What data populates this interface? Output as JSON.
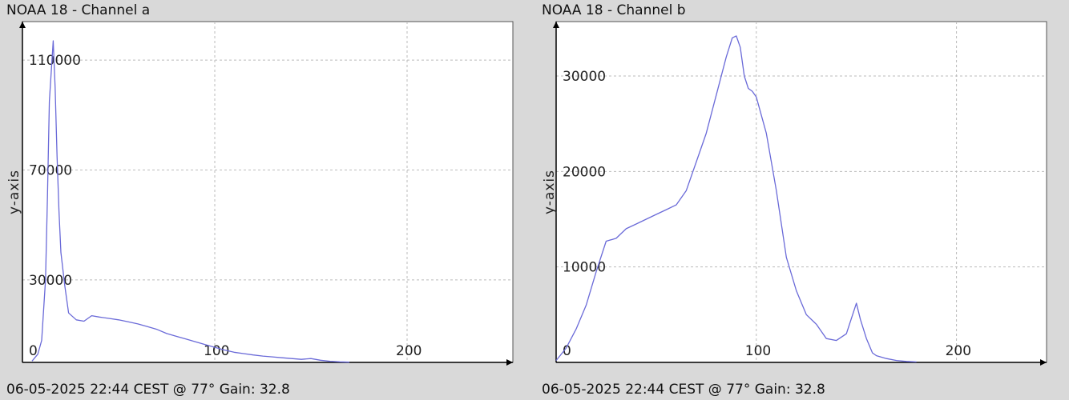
{
  "chart_data": [
    {
      "type": "line",
      "title": "NOAA 18 - Channel a",
      "footer": "06-05-2025 22:44 CEST @ 77° Gain: 32.8",
      "xlabel": "",
      "ylabel": "y-axis",
      "xlim": [
        0,
        255
      ],
      "ylim": [
        0,
        124000
      ],
      "xticks": [
        0,
        100,
        200
      ],
      "xtick_labels": [
        "0",
        "100",
        "200"
      ],
      "yticks": [
        30000,
        70000,
        110000
      ],
      "ytick_labels": [
        "30000",
        "70000",
        "110000"
      ],
      "grid": true,
      "line_color": "#6a6ad8",
      "series": [
        {
          "x": [
            5,
            8,
            10,
            12,
            13,
            14,
            15,
            16,
            17,
            18,
            19,
            20,
            22,
            24,
            28,
            32,
            36,
            40,
            45,
            50,
            55,
            60,
            65,
            70,
            75,
            80,
            85,
            90,
            95,
            100,
            105,
            110,
            115,
            120,
            125,
            130,
            135,
            140,
            145,
            150,
            155,
            160,
            165,
            170,
            170
          ],
          "y": [
            500,
            3000,
            8000,
            30000,
            60000,
            95000,
            106000,
            117000,
            100000,
            75000,
            55000,
            40000,
            28000,
            18000,
            15500,
            15000,
            17000,
            16500,
            16000,
            15500,
            14800,
            14000,
            13000,
            12000,
            10500,
            9500,
            8500,
            7500,
            6500,
            5500,
            4500,
            3700,
            3200,
            2700,
            2300,
            2000,
            1700,
            1400,
            1100,
            1400,
            800,
            400,
            200,
            100,
            100
          ]
        }
      ]
    },
    {
      "type": "line",
      "title": "NOAA 18 - Channel b",
      "footer": "06-05-2025 22:44 CEST @ 77° Gain: 32.8",
      "xlabel": "",
      "ylabel": "y-axis",
      "xlim": [
        0,
        245
      ],
      "ylim": [
        0,
        35700
      ],
      "xticks": [
        0,
        100,
        200
      ],
      "xtick_labels": [
        "0",
        "100",
        "200"
      ],
      "yticks": [
        10000,
        20000,
        30000
      ],
      "ytick_labels": [
        "10000",
        "20000",
        "30000"
      ],
      "grid": true,
      "line_color": "#6a6ad8",
      "series": [
        {
          "x": [
            0,
            5,
            10,
            15,
            20,
            25,
            30,
            35,
            40,
            45,
            50,
            55,
            60,
            65,
            70,
            75,
            80,
            85,
            88,
            90,
            92,
            94,
            96,
            98,
            100,
            105,
            110,
            115,
            120,
            125,
            130,
            135,
            140,
            145,
            150,
            152,
            155,
            157,
            158,
            160,
            165,
            170,
            175,
            180
          ],
          "y": [
            200,
            1500,
            3500,
            6000,
            9500,
            12700,
            13000,
            14000,
            14500,
            15000,
            15500,
            16000,
            16500,
            18000,
            21000,
            24000,
            28000,
            32000,
            34000,
            34200,
            33000,
            30000,
            28700,
            28400,
            27800,
            24000,
            18000,
            11000,
            7500,
            5000,
            4000,
            2500,
            2300,
            3000,
            6200,
            4500,
            2500,
            1500,
            1000,
            700,
            400,
            200,
            100,
            50
          ]
        }
      ]
    }
  ]
}
